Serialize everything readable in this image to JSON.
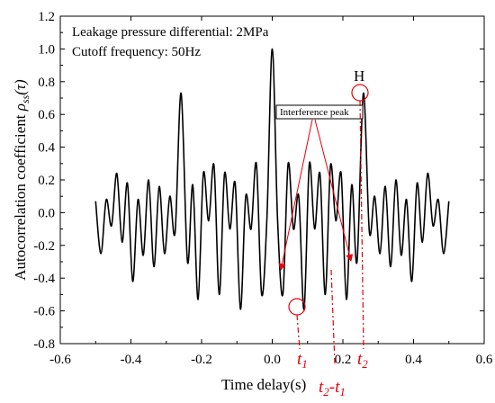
{
  "chart_data": {
    "type": "line",
    "xlabel": "Time delay(s)",
    "ylabel": "Autocorrelation coefficient ρss(τ)",
    "ylabel_parts": {
      "text": "Autocorrelation coefficient ",
      "rho": "ρ",
      "sub": "ss",
      "tau": "(τ)"
    },
    "xlim": [
      -0.6,
      0.6
    ],
    "ylim": [
      -0.8,
      1.2
    ],
    "x_ticks": [
      "-0.6",
      "-0.4",
      "-0.2",
      "0.0",
      "0.2",
      "0.4",
      "0.6"
    ],
    "y_ticks": [
      "-0.8",
      "-0.6",
      "-0.4",
      "-0.2",
      "0.0",
      "0.2",
      "0.4",
      "0.6",
      "0.8",
      "1.0",
      "1.2"
    ],
    "grid": false,
    "annotations": {
      "line1": "Leakage pressure differential: 2MPa",
      "line2": "Cutoff frequency: 50Hz",
      "peak_label": "H",
      "interference_label": "Interference peak",
      "t1": "t1",
      "t2": "t2",
      "t2_minus_t1": "t2-t1"
    },
    "line_color": "#000000",
    "annotation_color": "#e8000b",
    "series": [
      {
        "x": [
          -0.5,
          -0.485,
          -0.47,
          -0.455,
          -0.44,
          -0.425,
          -0.41,
          -0.395,
          -0.38,
          -0.365,
          -0.35,
          -0.335,
          -0.32,
          -0.305,
          -0.29,
          -0.275,
          -0.258,
          -0.24,
          -0.225,
          -0.21,
          -0.195,
          -0.18,
          -0.165,
          -0.15,
          -0.135,
          -0.12,
          -0.105,
          -0.09,
          -0.075,
          -0.06,
          -0.045,
          -0.03,
          -0.015,
          0.0,
          0.015,
          0.03,
          0.045,
          0.06,
          0.075,
          0.09,
          0.105,
          0.12,
          0.135,
          0.15,
          0.165,
          0.18,
          0.195,
          0.21,
          0.225,
          0.24,
          0.258,
          0.275,
          0.29,
          0.305,
          0.32,
          0.335,
          0.35,
          0.365,
          0.38,
          0.395,
          0.41,
          0.425,
          0.44,
          0.455,
          0.47,
          0.485,
          0.5
        ],
        "y": [
          0.07,
          -0.25,
          0.08,
          -0.08,
          0.24,
          -0.18,
          0.18,
          -0.42,
          0.08,
          -0.26,
          0.2,
          -0.33,
          0.16,
          -0.25,
          0.1,
          -0.12,
          0.73,
          -0.3,
          0.17,
          -0.53,
          0.24,
          -0.05,
          0.29,
          -0.5,
          0.24,
          -0.1,
          0.18,
          -0.59,
          0.1,
          -0.1,
          0.3,
          -0.5,
          -0.03,
          1.0,
          -0.04,
          -0.5,
          0.3,
          -0.1,
          0.1,
          -0.59,
          0.3,
          -0.1,
          0.24,
          -0.5,
          0.29,
          -0.05,
          0.24,
          -0.53,
          0.17,
          -0.3,
          0.73,
          -0.12,
          0.1,
          -0.25,
          0.16,
          -0.33,
          0.2,
          -0.26,
          0.08,
          -0.42,
          0.18,
          -0.18,
          0.24,
          -0.08,
          0.08,
          -0.25,
          0.07
        ]
      }
    ]
  }
}
